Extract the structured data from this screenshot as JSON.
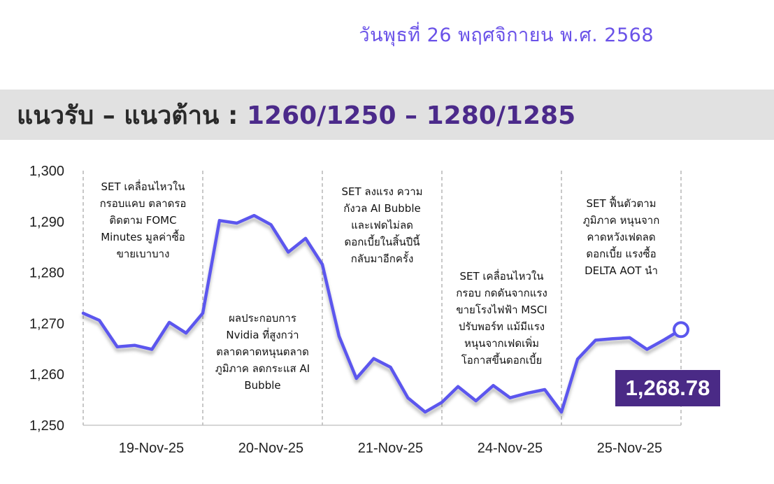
{
  "header": {
    "date": "วันพุธที่ 26 พฤศจิกายน พ.ศ. 2568",
    "title_prefix": "แนวรับ – แนวต้าน : ",
    "title_levels": "1260/1250 – 1280/1285"
  },
  "chart_data": {
    "type": "line",
    "title": "",
    "xlabel": "",
    "ylabel": "",
    "ylim": [
      1250,
      1300
    ],
    "yticks": [
      1300,
      1290,
      1280,
      1270,
      1260,
      1250
    ],
    "ytick_labels": [
      "1,300",
      "1,290",
      "1,280",
      "1,270",
      "1,260",
      "1,250"
    ],
    "grid": false,
    "categories": [
      "19-Nov-25",
      "20-Nov-25",
      "21-Nov-25",
      "24-Nov-25",
      "25-Nov-25"
    ],
    "series": [
      {
        "color": "#5b57ee",
        "points": [
          [
            0,
            1272.0
          ],
          [
            0.135,
            1270.6
          ],
          [
            0.285,
            1265.4
          ],
          [
            0.43,
            1265.7
          ],
          [
            0.575,
            1264.9
          ],
          [
            0.72,
            1270.2
          ],
          [
            0.86,
            1268.1
          ],
          [
            1.0,
            1272.0
          ],
          [
            1.14,
            1290.2
          ],
          [
            1.285,
            1289.7
          ],
          [
            1.43,
            1291.2
          ],
          [
            1.57,
            1289.4
          ],
          [
            1.715,
            1284.0
          ],
          [
            1.86,
            1286.7
          ],
          [
            2.0,
            1281.6
          ],
          [
            2.14,
            1267.5
          ],
          [
            2.285,
            1259.2
          ],
          [
            2.43,
            1263.1
          ],
          [
            2.57,
            1261.4
          ],
          [
            2.715,
            1255.4
          ],
          [
            2.86,
            1252.6
          ],
          [
            3.0,
            1254.5
          ],
          [
            3.135,
            1257.6
          ],
          [
            3.285,
            1254.8
          ],
          [
            3.43,
            1257.8
          ],
          [
            3.57,
            1255.4
          ],
          [
            3.715,
            1256.3
          ],
          [
            3.86,
            1257.0
          ],
          [
            4.0,
            1252.6
          ],
          [
            4.135,
            1263.0
          ],
          [
            4.285,
            1266.7
          ],
          [
            4.43,
            1267.0
          ],
          [
            4.57,
            1267.2
          ],
          [
            4.715,
            1264.9
          ],
          [
            4.86,
            1266.8
          ],
          [
            5.0,
            1268.78
          ]
        ]
      }
    ],
    "annotations": [
      [
        "SET เคลื่อนไหวใน",
        "กรอบแคบ ตลาดรอ",
        "ติดตาม FOMC",
        "Minutes มูลค่าซื้อ",
        "ขายเบาบาง"
      ],
      [
        "ผลประกอบการ",
        "Nvidia ที่สูงกว่า",
        "ตลาดคาดหนุนตลาด",
        "ภูมิภาค ลดกระแส AI",
        "Bubble"
      ],
      [
        "SET ลงแรง ความ",
        "กังวล AI Bubble",
        "และเฟดไม่ลด",
        "ดอกเบี้ยในสิ้นปีนี้",
        "กลับมาอีกครั้ง"
      ],
      [
        "SET เคลื่อนไหวใน",
        "กรอบ กดดันจากแรง",
        "ขายโรงไฟฟ้า MSCI",
        "ปรับพอร์ท แม้มีแรง",
        "หนุนจากเฟดเพิ่ม",
        "โอกาสขึ้นดอกเบี้ย"
      ],
      [
        "SET ฟื้นตัวตาม",
        "ภูมิภาค หนุนจาก",
        "คาดหวังเฟดลด",
        "ดอกเบี้ย แรงซื้อ",
        "DELTA AOT นำ"
      ]
    ],
    "last_value": "1,268.78"
  }
}
